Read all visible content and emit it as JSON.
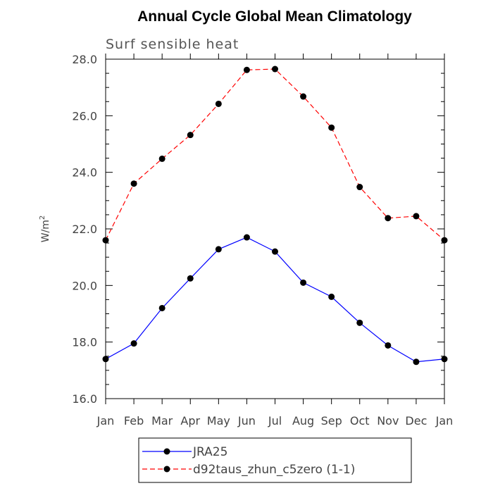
{
  "chart_data": {
    "type": "line",
    "title": "Annual Cycle Global Mean Climatology",
    "subtitle": "Surf sensible heat",
    "ylabel": "W/m",
    "ylabel_superscript": "2",
    "ylim": [
      16.0,
      28.0
    ],
    "yticks": [
      "16.0",
      "18.0",
      "20.0",
      "22.0",
      "24.0",
      "26.0",
      "28.0"
    ],
    "yticks_values": [
      16,
      18,
      20,
      22,
      24,
      26,
      28
    ],
    "categories": [
      "Jan",
      "Feb",
      "Mar",
      "Apr",
      "May",
      "Jun",
      "Jul",
      "Aug",
      "Sep",
      "Oct",
      "Nov",
      "Dec",
      "Jan"
    ],
    "series": [
      {
        "name": "JRA25",
        "color": "#0000ff",
        "dash": "solid",
        "values": [
          17.4,
          17.95,
          19.2,
          20.25,
          21.28,
          21.7,
          21.2,
          20.1,
          19.6,
          18.68,
          17.88,
          17.3,
          17.4
        ]
      },
      {
        "name": "d92taus_zhun_c5zero (1-1)",
        "color": "#ff0000",
        "dash": "dashed",
        "values": [
          21.6,
          23.6,
          24.48,
          25.32,
          26.42,
          27.62,
          27.65,
          26.68,
          25.58,
          23.48,
          22.38,
          22.45,
          21.6
        ]
      }
    ],
    "grid": false,
    "legend_position": "bottom"
  }
}
